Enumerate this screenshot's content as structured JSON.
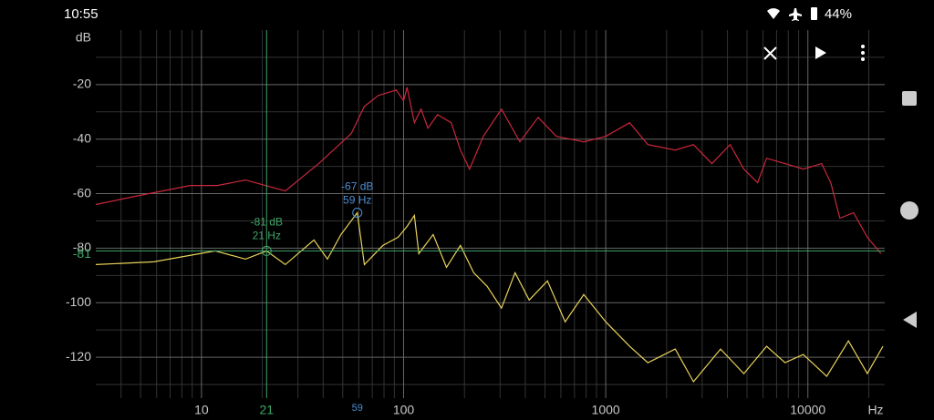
{
  "status_bar": {
    "time": "10:55",
    "battery": "44%"
  },
  "chart_data": {
    "type": "line",
    "y_label": "dB",
    "x_label": "Hz",
    "log_x": true,
    "grid": true,
    "xlim": [
      3,
      24000
    ],
    "ylim": [
      -135,
      0
    ],
    "xticks": [
      10,
      100,
      1000,
      10000
    ],
    "yticks": [
      -20,
      -40,
      -60,
      -80,
      -100,
      -120
    ],
    "xminorticks": [
      4,
      5,
      6,
      7,
      8,
      9,
      20,
      30,
      40,
      50,
      60,
      70,
      80,
      90,
      200,
      300,
      400,
      500,
      600,
      700,
      800,
      900,
      2000,
      3000,
      4000,
      5000,
      6000,
      7000,
      8000,
      9000,
      20000
    ],
    "yminorticks": [
      -10,
      -30,
      -50,
      -70,
      -90,
      -110,
      -130
    ],
    "series": [
      {
        "color": "#c8283c",
        "x": [
          3,
          4.7,
          8.8,
          12,
          16.5,
          26,
          38,
          55,
          64,
          75,
          83,
          92,
          100,
          104,
          113,
          122,
          132,
          147,
          172,
          191,
          212,
          248,
          305,
          376,
          463,
          570,
          778,
          1000,
          1312,
          1615,
          2207,
          2717,
          3350,
          4120,
          4820,
          5640,
          6250,
          7710,
          9490,
          11690,
          12970,
          14390,
          16830,
          19670,
          23010
        ],
        "values": [
          -64,
          -61,
          -57,
          -57,
          -55,
          -59,
          -49,
          -38,
          -28,
          -24,
          -23,
          -22,
          -26,
          -21,
          -34,
          -29,
          -36,
          -31,
          -34,
          -44,
          -51,
          -39,
          -29,
          -41,
          -32,
          -39,
          -41,
          -39,
          -34,
          -42,
          -44,
          -42,
          -49,
          -42,
          -51,
          -56,
          -47,
          -49,
          -51,
          -49,
          -56,
          -69,
          -67,
          -76,
          -82
        ]
      },
      {
        "color": "#e8d25a",
        "x": [
          3,
          5.8,
          11.7,
          16.5,
          21,
          26,
          36,
          42,
          49,
          59,
          64,
          79,
          94,
          104,
          113,
          119,
          140,
          163,
          191,
          222,
          259,
          305,
          356,
          418,
          515,
          630,
          778,
          1000,
          1312,
          1615,
          2207,
          2717,
          3700,
          4820,
          6250,
          7710,
          9490,
          12390,
          15870,
          19670,
          23500
        ],
        "values": [
          -86,
          -85,
          -81,
          -84,
          -81,
          -86,
          -77,
          -84,
          -75,
          -67,
          -86,
          -79,
          -76,
          -72,
          -68,
          -82,
          -75,
          -87,
          -79,
          -89,
          -94,
          -102,
          -89,
          -99,
          -92,
          -107,
          -97,
          -107,
          -116,
          -122,
          -117,
          -129,
          -117,
          -126,
          -116,
          -122,
          -119,
          -127,
          -114,
          -126,
          -116
        ]
      }
    ],
    "cursor": {
      "x": 21,
      "y": -81,
      "x_label": "21 Hz",
      "y_label": "-81 dB",
      "color": "#3fa66a"
    },
    "peak": {
      "x": 59,
      "y": -67,
      "x_label": "59 Hz",
      "y_label": "-67 dB",
      "color": "#4f8fd6"
    }
  }
}
